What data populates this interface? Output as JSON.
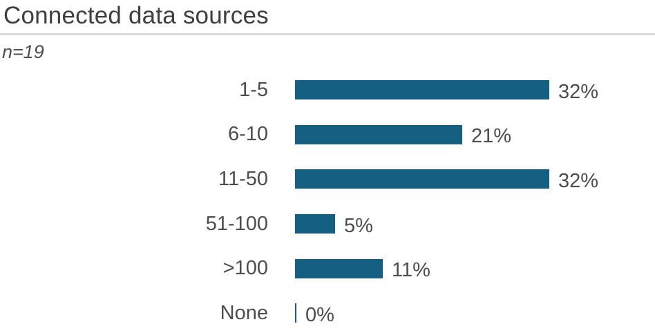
{
  "header": {
    "title": "Connected data sources",
    "sample_size_label": "n=19"
  },
  "chart_data": {
    "type": "bar",
    "orientation": "horizontal",
    "title": "Connected data sources",
    "subtitle": "n=19",
    "categories": [
      "1-5",
      "6-10",
      "11-50",
      "51-100",
      ">100",
      "None"
    ],
    "values": [
      32,
      21,
      32,
      5,
      11,
      0
    ],
    "value_labels": [
      "32%",
      "21%",
      "32%",
      "5%",
      "11%",
      "0%"
    ],
    "xlabel": "",
    "ylabel": "",
    "xlim": [
      0,
      35
    ],
    "grid": "off",
    "legend": "none",
    "axis_ticks_visible": false,
    "colors": {
      "bar": "#156082",
      "title": "#3F3F3F",
      "label": "#4D4D4D",
      "divider": "#D9D9D9",
      "background": "#FFFFFF"
    }
  }
}
